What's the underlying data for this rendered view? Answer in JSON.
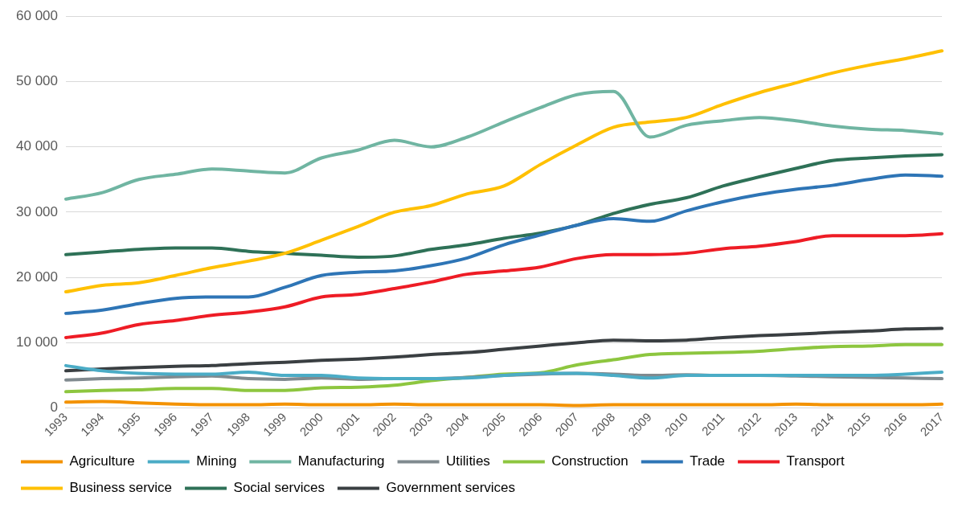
{
  "chart_data": {
    "type": "line",
    "categories": [
      "1993",
      "1994",
      "1995",
      "1996",
      "1997",
      "1998",
      "1999",
      "2000",
      "2001",
      "2002",
      "2003",
      "2004",
      "2005",
      "2006",
      "2007",
      "2008",
      "2009",
      "2010",
      "2011",
      "2012",
      "2013",
      "2014",
      "2015",
      "2016",
      "2017"
    ],
    "ylim": [
      0,
      60000
    ],
    "yticks": [
      {
        "value": 0,
        "label": "0"
      },
      {
        "value": 10000,
        "label": "10 000"
      },
      {
        "value": 20000,
        "label": "20 000"
      },
      {
        "value": 30000,
        "label": "30 000"
      },
      {
        "value": 40000,
        "label": "40 000"
      },
      {
        "value": 50000,
        "label": "50 000"
      },
      {
        "value": 60000,
        "label": "60 000"
      }
    ],
    "grid": "y",
    "legend": "bottom",
    "marker": "none",
    "line_style": "solid",
    "series": [
      {
        "name": "Agriculture",
        "color": "#f39200",
        "values": [
          900,
          1000,
          800,
          600,
          500,
          500,
          600,
          500,
          500,
          600,
          500,
          500,
          500,
          500,
          400,
          500,
          500,
          500,
          500,
          500,
          600,
          500,
          500,
          500,
          600
        ]
      },
      {
        "name": "Mining",
        "color": "#4bacc6",
        "values": [
          6500,
          5700,
          5300,
          5200,
          5200,
          5500,
          5000,
          5000,
          4600,
          4500,
          4500,
          4600,
          5000,
          5300,
          5300,
          5000,
          4600,
          5000,
          5000,
          5000,
          5000,
          5000,
          5000,
          5200,
          5500
        ]
      },
      {
        "name": "Manufacturing",
        "color": "#70b5a2",
        "values": [
          32000,
          33000,
          35000,
          35800,
          36600,
          36300,
          36000,
          38300,
          39500,
          41000,
          40000,
          41500,
          43800,
          46000,
          48000,
          48500,
          41500,
          43300,
          44000,
          44500,
          44000,
          43200,
          42700,
          42500,
          42000
        ]
      },
      {
        "name": "Utilities",
        "color": "#808a8f",
        "values": [
          4300,
          4500,
          4600,
          4800,
          4900,
          4500,
          4400,
          4600,
          4400,
          4500,
          4500,
          4700,
          5000,
          5200,
          5300,
          5200,
          5000,
          5100,
          5000,
          5000,
          4900,
          4800,
          4700,
          4600,
          4500
        ]
      },
      {
        "name": "Construction",
        "color": "#8dc63f",
        "values": [
          2500,
          2700,
          2800,
          3000,
          3000,
          2700,
          2700,
          3100,
          3200,
          3500,
          4200,
          4700,
          5200,
          5400,
          6600,
          7400,
          8200,
          8400,
          8500,
          8700,
          9100,
          9400,
          9500,
          9700,
          9700
        ]
      },
      {
        "name": "Trade",
        "color": "#2e75b6",
        "values": [
          14500,
          15000,
          16000,
          16800,
          17000,
          17000,
          18500,
          20300,
          20800,
          21000,
          21800,
          23000,
          25000,
          26500,
          28000,
          29000,
          28600,
          30200,
          31600,
          32700,
          33500,
          34100,
          35000,
          35700,
          35500
        ]
      },
      {
        "name": "Transport",
        "color": "#ee1c25",
        "values": [
          10800,
          11500,
          12800,
          13400,
          14200,
          14700,
          15500,
          17000,
          17400,
          18300,
          19300,
          20500,
          21000,
          21600,
          22900,
          23500,
          23500,
          23700,
          24400,
          24800,
          25500,
          26400,
          26400,
          26400,
          26700
        ]
      },
      {
        "name": "Business service",
        "color": "#ffc000",
        "values": [
          17800,
          18800,
          19200,
          20300,
          21500,
          22500,
          23700,
          25700,
          27800,
          30000,
          31000,
          32800,
          34000,
          37300,
          40300,
          43000,
          43800,
          44500,
          46500,
          48300,
          49800,
          51300,
          52500,
          53500,
          54700
        ]
      },
      {
        "name": "Social services",
        "color": "#2e7157",
        "values": [
          23500,
          23900,
          24300,
          24500,
          24500,
          24000,
          23700,
          23400,
          23100,
          23300,
          24300,
          25000,
          26000,
          26800,
          28000,
          29800,
          31200,
          32200,
          34000,
          35400,
          36700,
          37900,
          38300,
          38600,
          38800
        ]
      },
      {
        "name": "Government services",
        "color": "#3a3f42",
        "values": [
          5700,
          6000,
          6200,
          6400,
          6500,
          6800,
          7000,
          7300,
          7500,
          7800,
          8200,
          8500,
          9000,
          9500,
          10000,
          10400,
          10300,
          10400,
          10800,
          11100,
          11300,
          11600,
          11800,
          12100,
          12200
        ]
      }
    ]
  }
}
